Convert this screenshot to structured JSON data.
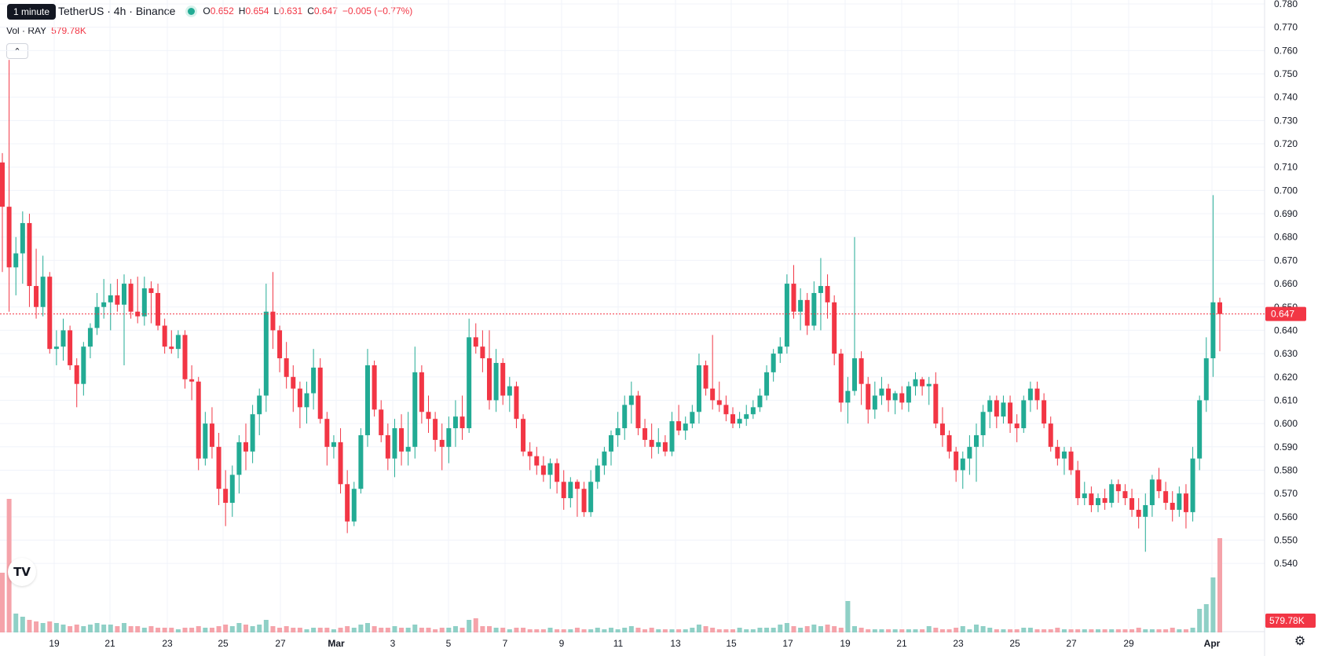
{
  "header": {
    "tooltip": "1 minute",
    "title": "TetherUS · 4h · Binance",
    "ohlc": {
      "o_label": "O",
      "o": "0.652",
      "h_label": "H",
      "h": "0.654",
      "l_label": "L",
      "l": "0.631",
      "c_label": "C",
      "c": "0.647",
      "change": "−0.005 (−0.77%)"
    },
    "volume_label": "Vol · RAY",
    "volume_value": "579.78K"
  },
  "colors": {
    "up": "#22ab94",
    "down": "#f23645",
    "up_vol": "#8fd0c6",
    "down_vol": "#f5a3aa",
    "grid": "#f0f3fa",
    "text": "#131722"
  },
  "chart_data": {
    "type": "candlestick",
    "timeframe": "4h",
    "y_axis": {
      "min": 0.535,
      "max": 0.78,
      "ticks": [
        "0.780",
        "0.770",
        "0.760",
        "0.750",
        "0.740",
        "0.730",
        "0.720",
        "0.710",
        "0.700",
        "0.690",
        "0.680",
        "0.670",
        "0.660",
        "0.650",
        "0.640",
        "0.630",
        "0.620",
        "0.610",
        "0.600",
        "0.590",
        "0.580",
        "0.570",
        "0.560",
        "0.550",
        "0.540"
      ]
    },
    "x_axis": {
      "ticks": [
        "19",
        "21",
        "23",
        "25",
        "27",
        "Mar",
        "3",
        "5",
        "7",
        "9",
        "11",
        "13",
        "15",
        "17",
        "19",
        "21",
        "23",
        "25",
        "27",
        "29",
        "Apr"
      ]
    },
    "last_price": "0.647",
    "last_volume": "579.78K",
    "ohlc": [
      [
        0.712,
        0.716,
        0.665,
        0.693
      ],
      [
        0.693,
        0.756,
        0.648,
        0.667
      ],
      [
        0.667,
        0.68,
        0.655,
        0.673
      ],
      [
        0.673,
        0.691,
        0.66,
        0.686
      ],
      [
        0.686,
        0.69,
        0.65,
        0.659
      ],
      [
        0.659,
        0.675,
        0.645,
        0.65
      ],
      [
        0.65,
        0.672,
        0.646,
        0.663
      ],
      [
        0.663,
        0.665,
        0.63,
        0.632
      ],
      [
        0.632,
        0.64,
        0.625,
        0.633
      ],
      [
        0.633,
        0.645,
        0.627,
        0.64
      ],
      [
        0.64,
        0.642,
        0.623,
        0.625
      ],
      [
        0.625,
        0.628,
        0.607,
        0.617
      ],
      [
        0.617,
        0.635,
        0.612,
        0.633
      ],
      [
        0.633,
        0.643,
        0.628,
        0.641
      ],
      [
        0.641,
        0.656,
        0.638,
        0.65
      ],
      [
        0.65,
        0.662,
        0.645,
        0.652
      ],
      [
        0.652,
        0.66,
        0.64,
        0.655
      ],
      [
        0.655,
        0.662,
        0.648,
        0.651
      ],
      [
        0.651,
        0.664,
        0.625,
        0.66
      ],
      [
        0.66,
        0.662,
        0.645,
        0.648
      ],
      [
        0.648,
        0.663,
        0.643,
        0.646
      ],
      [
        0.646,
        0.663,
        0.642,
        0.658
      ],
      [
        0.658,
        0.661,
        0.643,
        0.656
      ],
      [
        0.656,
        0.66,
        0.64,
        0.642
      ],
      [
        0.642,
        0.645,
        0.63,
        0.633
      ],
      [
        0.633,
        0.64,
        0.63,
        0.632
      ],
      [
        0.632,
        0.64,
        0.628,
        0.638
      ],
      [
        0.638,
        0.64,
        0.615,
        0.619
      ],
      [
        0.619,
        0.625,
        0.61,
        0.618
      ],
      [
        0.618,
        0.62,
        0.58,
        0.585
      ],
      [
        0.585,
        0.605,
        0.582,
        0.6
      ],
      [
        0.6,
        0.607,
        0.585,
        0.59
      ],
      [
        0.59,
        0.596,
        0.565,
        0.572
      ],
      [
        0.572,
        0.58,
        0.556,
        0.566
      ],
      [
        0.566,
        0.582,
        0.56,
        0.578
      ],
      [
        0.578,
        0.595,
        0.57,
        0.592
      ],
      [
        0.592,
        0.6,
        0.58,
        0.588
      ],
      [
        0.588,
        0.608,
        0.583,
        0.604
      ],
      [
        0.604,
        0.615,
        0.595,
        0.612
      ],
      [
        0.612,
        0.66,
        0.605,
        0.648
      ],
      [
        0.648,
        0.665,
        0.632,
        0.64
      ],
      [
        0.64,
        0.642,
        0.622,
        0.628
      ],
      [
        0.628,
        0.635,
        0.615,
        0.62
      ],
      [
        0.62,
        0.625,
        0.605,
        0.615
      ],
      [
        0.615,
        0.618,
        0.598,
        0.607
      ],
      [
        0.607,
        0.618,
        0.6,
        0.613
      ],
      [
        0.613,
        0.632,
        0.606,
        0.624
      ],
      [
        0.624,
        0.628,
        0.6,
        0.602
      ],
      [
        0.602,
        0.605,
        0.582,
        0.59
      ],
      [
        0.59,
        0.595,
        0.585,
        0.592
      ],
      [
        0.592,
        0.598,
        0.57,
        0.574
      ],
      [
        0.574,
        0.58,
        0.553,
        0.558
      ],
      [
        0.558,
        0.575,
        0.556,
        0.572
      ],
      [
        0.572,
        0.598,
        0.57,
        0.595
      ],
      [
        0.595,
        0.632,
        0.59,
        0.625
      ],
      [
        0.625,
        0.627,
        0.603,
        0.606
      ],
      [
        0.606,
        0.61,
        0.592,
        0.595
      ],
      [
        0.595,
        0.6,
        0.58,
        0.585
      ],
      [
        0.585,
        0.602,
        0.577,
        0.598
      ],
      [
        0.598,
        0.604,
        0.582,
        0.588
      ],
      [
        0.588,
        0.605,
        0.582,
        0.59
      ],
      [
        0.59,
        0.633,
        0.585,
        0.622
      ],
      [
        0.622,
        0.625,
        0.6,
        0.605
      ],
      [
        0.605,
        0.612,
        0.596,
        0.602
      ],
      [
        0.602,
        0.605,
        0.588,
        0.593
      ],
      [
        0.593,
        0.6,
        0.58,
        0.59
      ],
      [
        0.59,
        0.603,
        0.583,
        0.598
      ],
      [
        0.598,
        0.61,
        0.59,
        0.603
      ],
      [
        0.603,
        0.612,
        0.593,
        0.598
      ],
      [
        0.598,
        0.645,
        0.596,
        0.637
      ],
      [
        0.637,
        0.643,
        0.63,
        0.633
      ],
      [
        0.633,
        0.64,
        0.622,
        0.628
      ],
      [
        0.628,
        0.64,
        0.606,
        0.61
      ],
      [
        0.61,
        0.632,
        0.605,
        0.626
      ],
      [
        0.626,
        0.628,
        0.608,
        0.612
      ],
      [
        0.612,
        0.62,
        0.605,
        0.616
      ],
      [
        0.616,
        0.618,
        0.598,
        0.602
      ],
      [
        0.602,
        0.604,
        0.586,
        0.588
      ],
      [
        0.588,
        0.592,
        0.58,
        0.586
      ],
      [
        0.586,
        0.59,
        0.578,
        0.582
      ],
      [
        0.582,
        0.586,
        0.575,
        0.578
      ],
      [
        0.578,
        0.585,
        0.572,
        0.583
      ],
      [
        0.583,
        0.585,
        0.57,
        0.575
      ],
      [
        0.575,
        0.58,
        0.563,
        0.568
      ],
      [
        0.568,
        0.577,
        0.564,
        0.575
      ],
      [
        0.575,
        0.576,
        0.56,
        0.572
      ],
      [
        0.572,
        0.575,
        0.56,
        0.562
      ],
      [
        0.562,
        0.58,
        0.56,
        0.575
      ],
      [
        0.575,
        0.585,
        0.572,
        0.582
      ],
      [
        0.582,
        0.59,
        0.578,
        0.588
      ],
      [
        0.588,
        0.597,
        0.582,
        0.595
      ],
      [
        0.595,
        0.605,
        0.59,
        0.598
      ],
      [
        0.598,
        0.612,
        0.593,
        0.608
      ],
      [
        0.608,
        0.618,
        0.6,
        0.612
      ],
      [
        0.612,
        0.614,
        0.595,
        0.598
      ],
      [
        0.598,
        0.602,
        0.59,
        0.593
      ],
      [
        0.593,
        0.6,
        0.585,
        0.59
      ],
      [
        0.59,
        0.598,
        0.587,
        0.592
      ],
      [
        0.592,
        0.595,
        0.586,
        0.588
      ],
      [
        0.588,
        0.605,
        0.586,
        0.601
      ],
      [
        0.601,
        0.608,
        0.595,
        0.597
      ],
      [
        0.597,
        0.603,
        0.593,
        0.6
      ],
      [
        0.6,
        0.608,
        0.598,
        0.605
      ],
      [
        0.605,
        0.63,
        0.6,
        0.625
      ],
      [
        0.625,
        0.627,
        0.612,
        0.615
      ],
      [
        0.615,
        0.638,
        0.606,
        0.61
      ],
      [
        0.61,
        0.618,
        0.605,
        0.608
      ],
      [
        0.608,
        0.612,
        0.601,
        0.604
      ],
      [
        0.604,
        0.607,
        0.598,
        0.6
      ],
      [
        0.6,
        0.605,
        0.598,
        0.602
      ],
      [
        0.602,
        0.608,
        0.599,
        0.604
      ],
      [
        0.604,
        0.61,
        0.602,
        0.607
      ],
      [
        0.607,
        0.615,
        0.605,
        0.612
      ],
      [
        0.612,
        0.625,
        0.61,
        0.622
      ],
      [
        0.622,
        0.632,
        0.618,
        0.63
      ],
      [
        0.63,
        0.637,
        0.626,
        0.633
      ],
      [
        0.633,
        0.664,
        0.63,
        0.66
      ],
      [
        0.66,
        0.668,
        0.645,
        0.648
      ],
      [
        0.648,
        0.658,
        0.64,
        0.653
      ],
      [
        0.653,
        0.656,
        0.638,
        0.642
      ],
      [
        0.642,
        0.661,
        0.64,
        0.656
      ],
      [
        0.656,
        0.671,
        0.64,
        0.659
      ],
      [
        0.659,
        0.664,
        0.645,
        0.652
      ],
      [
        0.652,
        0.655,
        0.625,
        0.63
      ],
      [
        0.63,
        0.632,
        0.605,
        0.609
      ],
      [
        0.609,
        0.62,
        0.6,
        0.614
      ],
      [
        0.614,
        0.68,
        0.612,
        0.628
      ],
      [
        0.628,
        0.631,
        0.608,
        0.617
      ],
      [
        0.617,
        0.62,
        0.6,
        0.606
      ],
      [
        0.606,
        0.618,
        0.602,
        0.612
      ],
      [
        0.612,
        0.62,
        0.608,
        0.615
      ],
      [
        0.615,
        0.617,
        0.605,
        0.61
      ],
      [
        0.61,
        0.614,
        0.604,
        0.613
      ],
      [
        0.613,
        0.616,
        0.606,
        0.609
      ],
      [
        0.609,
        0.618,
        0.605,
        0.616
      ],
      [
        0.616,
        0.622,
        0.612,
        0.619
      ],
      [
        0.619,
        0.62,
        0.612,
        0.616
      ],
      [
        0.616,
        0.62,
        0.608,
        0.617
      ],
      [
        0.617,
        0.622,
        0.598,
        0.6
      ],
      [
        0.6,
        0.607,
        0.59,
        0.595
      ],
      [
        0.595,
        0.597,
        0.585,
        0.588
      ],
      [
        0.588,
        0.59,
        0.575,
        0.58
      ],
      [
        0.58,
        0.588,
        0.572,
        0.585
      ],
      [
        0.585,
        0.595,
        0.578,
        0.59
      ],
      [
        0.59,
        0.6,
        0.575,
        0.595
      ],
      [
        0.595,
        0.608,
        0.59,
        0.605
      ],
      [
        0.605,
        0.612,
        0.598,
        0.61
      ],
      [
        0.61,
        0.612,
        0.598,
        0.603
      ],
      [
        0.603,
        0.612,
        0.6,
        0.609
      ],
      [
        0.609,
        0.612,
        0.596,
        0.6
      ],
      [
        0.6,
        0.604,
        0.592,
        0.598
      ],
      [
        0.598,
        0.612,
        0.596,
        0.61
      ],
      [
        0.61,
        0.618,
        0.605,
        0.615
      ],
      [
        0.615,
        0.618,
        0.606,
        0.61
      ],
      [
        0.61,
        0.613,
        0.598,
        0.6
      ],
      [
        0.6,
        0.603,
        0.588,
        0.59
      ],
      [
        0.59,
        0.593,
        0.582,
        0.585
      ],
      [
        0.585,
        0.59,
        0.578,
        0.588
      ],
      [
        0.588,
        0.59,
        0.578,
        0.58
      ],
      [
        0.58,
        0.584,
        0.565,
        0.568
      ],
      [
        0.568,
        0.575,
        0.565,
        0.57
      ],
      [
        0.57,
        0.573,
        0.562,
        0.565
      ],
      [
        0.565,
        0.57,
        0.562,
        0.568
      ],
      [
        0.568,
        0.572,
        0.563,
        0.566
      ],
      [
        0.566,
        0.576,
        0.564,
        0.574
      ],
      [
        0.574,
        0.576,
        0.566,
        0.571
      ],
      [
        0.571,
        0.574,
        0.565,
        0.568
      ],
      [
        0.568,
        0.572,
        0.56,
        0.563
      ],
      [
        0.563,
        0.568,
        0.555,
        0.56
      ],
      [
        0.56,
        0.57,
        0.545,
        0.565
      ],
      [
        0.565,
        0.578,
        0.56,
        0.576
      ],
      [
        0.576,
        0.581,
        0.568,
        0.571
      ],
      [
        0.571,
        0.575,
        0.563,
        0.566
      ],
      [
        0.566,
        0.571,
        0.558,
        0.563
      ],
      [
        0.563,
        0.573,
        0.56,
        0.57
      ],
      [
        0.57,
        0.574,
        0.555,
        0.562
      ],
      [
        0.562,
        0.59,
        0.558,
        0.585
      ],
      [
        0.585,
        0.612,
        0.58,
        0.61
      ],
      [
        0.61,
        0.637,
        0.605,
        0.628
      ],
      [
        0.628,
        0.698,
        0.62,
        0.652
      ],
      [
        0.652,
        0.654,
        0.631,
        0.647
      ]
    ],
    "volume": [
      0.38,
      0.85,
      0.12,
      0.1,
      0.08,
      0.07,
      0.06,
      0.07,
      0.06,
      0.05,
      0.04,
      0.05,
      0.04,
      0.05,
      0.06,
      0.05,
      0.05,
      0.04,
      0.06,
      0.04,
      0.04,
      0.03,
      0.04,
      0.03,
      0.03,
      0.03,
      0.02,
      0.03,
      0.03,
      0.04,
      0.03,
      0.03,
      0.04,
      0.05,
      0.04,
      0.06,
      0.05,
      0.04,
      0.05,
      0.08,
      0.04,
      0.03,
      0.04,
      0.03,
      0.03,
      0.02,
      0.03,
      0.03,
      0.03,
      0.02,
      0.03,
      0.04,
      0.03,
      0.05,
      0.06,
      0.04,
      0.03,
      0.03,
      0.04,
      0.03,
      0.03,
      0.05,
      0.03,
      0.03,
      0.02,
      0.03,
      0.03,
      0.04,
      0.03,
      0.08,
      0.09,
      0.04,
      0.04,
      0.03,
      0.03,
      0.02,
      0.03,
      0.03,
      0.02,
      0.02,
      0.02,
      0.03,
      0.02,
      0.02,
      0.02,
      0.03,
      0.02,
      0.02,
      0.03,
      0.02,
      0.03,
      0.02,
      0.03,
      0.04,
      0.03,
      0.02,
      0.03,
      0.02,
      0.02,
      0.02,
      0.02,
      0.02,
      0.03,
      0.05,
      0.04,
      0.03,
      0.02,
      0.02,
      0.02,
      0.03,
      0.02,
      0.02,
      0.03,
      0.03,
      0.03,
      0.05,
      0.06,
      0.04,
      0.03,
      0.04,
      0.05,
      0.04,
      0.05,
      0.04,
      0.03,
      0.2,
      0.04,
      0.03,
      0.02,
      0.02,
      0.02,
      0.02,
      0.02,
      0.02,
      0.02,
      0.02,
      0.02,
      0.04,
      0.03,
      0.02,
      0.02,
      0.03,
      0.04,
      0.02,
      0.05,
      0.04,
      0.03,
      0.02,
      0.02,
      0.02,
      0.02,
      0.03,
      0.03,
      0.02,
      0.02,
      0.02,
      0.03,
      0.02,
      0.02,
      0.02,
      0.02,
      0.02,
      0.02,
      0.02,
      0.02,
      0.02,
      0.02,
      0.02,
      0.03,
      0.02,
      0.02,
      0.02,
      0.02,
      0.03,
      0.02,
      0.02,
      0.03,
      0.15,
      0.18,
      0.35,
      0.6,
      0.07
    ]
  }
}
